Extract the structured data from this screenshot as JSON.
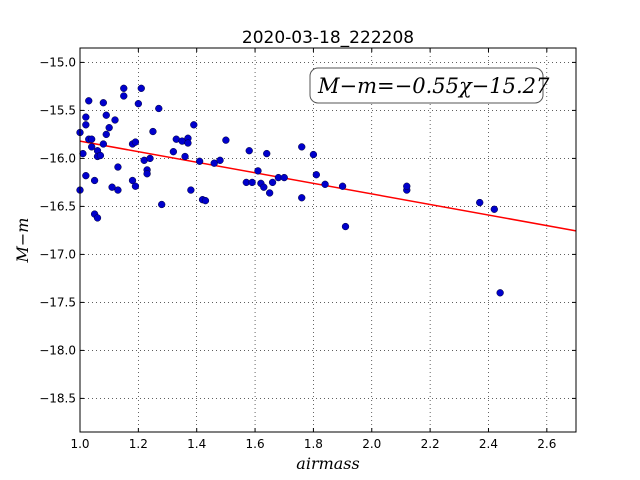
{
  "chart_data": {
    "type": "scatter",
    "title": "2020-03-18_222208",
    "xlabel": "airmass",
    "ylabel": "M−m",
    "xlim": [
      1.0,
      2.7
    ],
    "ylim": [
      -18.85,
      -14.85
    ],
    "y_inverted": true,
    "grid": true,
    "x_ticks": [
      "1.0",
      "1.2",
      "1.4",
      "1.6",
      "1.8",
      "2.0",
      "2.2",
      "2.4",
      "2.6"
    ],
    "y_ticks": [
      "−15.0",
      "−15.5",
      "−16.0",
      "−16.5",
      "−17.0",
      "−17.5",
      "−18.0",
      "−18.5"
    ],
    "annotation": "M−m=−0.55χ−15.27",
    "fit_line": {
      "slope": -0.55,
      "intercept": -15.27,
      "color": "#ff0000"
    },
    "point_color": "#0000cc",
    "points": [
      [
        1.0,
        -15.73
      ],
      [
        1.0,
        -16.33
      ],
      [
        1.01,
        -15.95
      ],
      [
        1.02,
        -15.65
      ],
      [
        1.02,
        -15.57
      ],
      [
        1.02,
        -16.18
      ],
      [
        1.03,
        -15.4
      ],
      [
        1.03,
        -15.8
      ],
      [
        1.04,
        -15.8
      ],
      [
        1.04,
        -15.88
      ],
      [
        1.05,
        -16.23
      ],
      [
        1.05,
        -16.58
      ],
      [
        1.06,
        -15.92
      ],
      [
        1.06,
        -16.62
      ],
      [
        1.06,
        -15.98
      ],
      [
        1.07,
        -15.97
      ],
      [
        1.08,
        -15.85
      ],
      [
        1.08,
        -15.42
      ],
      [
        1.09,
        -15.55
      ],
      [
        1.09,
        -15.75
      ],
      [
        1.1,
        -15.68
      ],
      [
        1.11,
        -16.3
      ],
      [
        1.12,
        -15.6
      ],
      [
        1.13,
        -16.33
      ],
      [
        1.13,
        -16.09
      ],
      [
        1.15,
        -15.35
      ],
      [
        1.15,
        -15.27
      ],
      [
        1.18,
        -15.85
      ],
      [
        1.18,
        -16.23
      ],
      [
        1.19,
        -15.83
      ],
      [
        1.19,
        -16.29
      ],
      [
        1.2,
        -15.43
      ],
      [
        1.21,
        -15.27
      ],
      [
        1.22,
        -16.02
      ],
      [
        1.23,
        -16.12
      ],
      [
        1.23,
        -16.16
      ],
      [
        1.24,
        -16.0
      ],
      [
        1.25,
        -15.72
      ],
      [
        1.27,
        -15.48
      ],
      [
        1.28,
        -16.48
      ],
      [
        1.32,
        -15.93
      ],
      [
        1.33,
        -15.8
      ],
      [
        1.35,
        -15.82
      ],
      [
        1.36,
        -15.98
      ],
      [
        1.37,
        -15.79
      ],
      [
        1.37,
        -15.84
      ],
      [
        1.38,
        -16.33
      ],
      [
        1.39,
        -15.65
      ],
      [
        1.41,
        -16.03
      ],
      [
        1.42,
        -16.43
      ],
      [
        1.43,
        -16.44
      ],
      [
        1.46,
        -16.05
      ],
      [
        1.48,
        -16.02
      ],
      [
        1.5,
        -15.81
      ],
      [
        1.57,
        -16.25
      ],
      [
        1.58,
        -15.92
      ],
      [
        1.59,
        -16.25
      ],
      [
        1.61,
        -16.13
      ],
      [
        1.62,
        -16.26
      ],
      [
        1.63,
        -16.3
      ],
      [
        1.64,
        -15.95
      ],
      [
        1.65,
        -16.36
      ],
      [
        1.66,
        -16.25
      ],
      [
        1.68,
        -16.2
      ],
      [
        1.7,
        -16.2
      ],
      [
        1.76,
        -15.88
      ],
      [
        1.76,
        -16.41
      ],
      [
        1.8,
        -15.96
      ],
      [
        1.81,
        -16.17
      ],
      [
        1.84,
        -16.27
      ],
      [
        1.9,
        -16.29
      ],
      [
        1.91,
        -16.71
      ],
      [
        2.12,
        -16.33
      ],
      [
        2.12,
        -16.29
      ],
      [
        2.37,
        -16.46
      ],
      [
        2.42,
        -16.53
      ],
      [
        2.44,
        -17.4
      ]
    ]
  }
}
